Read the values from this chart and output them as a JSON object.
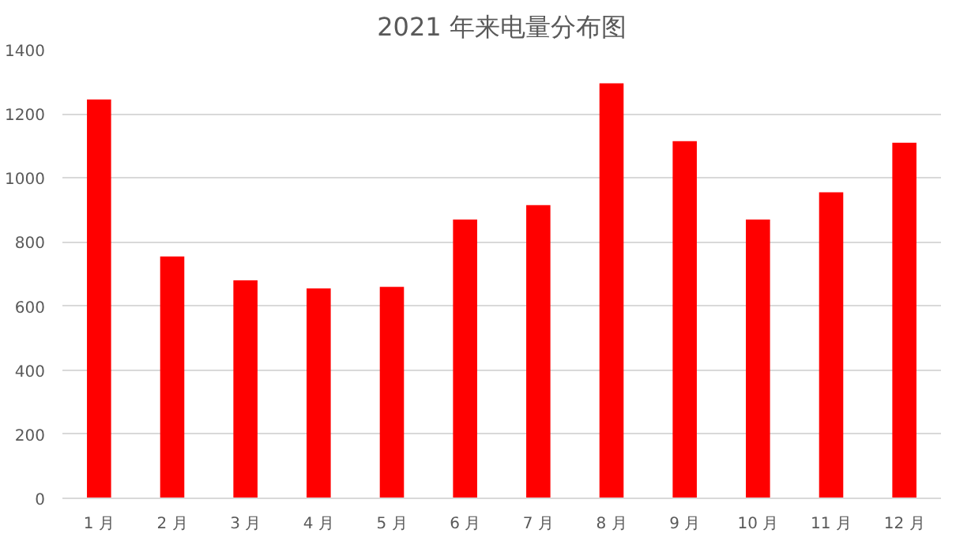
{
  "chart_data": {
    "type": "bar",
    "title": "2021 年来电量分布图",
    "categories": [
      "1 月",
      "2 月",
      "3 月",
      "4 月",
      "5 月",
      "6 月",
      "7 月",
      "8 月",
      "9 月",
      "10 月",
      "11 月",
      "12 月"
    ],
    "values": [
      1245,
      755,
      680,
      655,
      660,
      870,
      915,
      1295,
      1115,
      870,
      955,
      1110
    ],
    "color": "#ff0000",
    "ylim": [
      0,
      1400
    ],
    "yticks": [
      0,
      200,
      400,
      600,
      800,
      1000,
      1200,
      1400
    ],
    "grid": "y"
  }
}
